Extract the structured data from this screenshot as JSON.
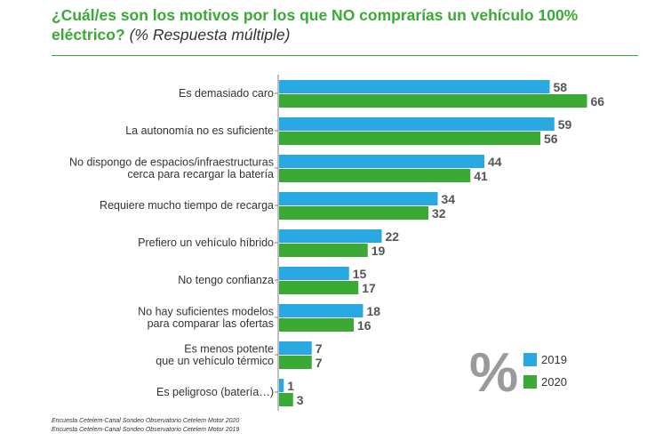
{
  "header": {
    "title_main": "¿Cuál/es son los motivos por los que NO comprarías un vehículo 100% eléctrico?",
    "title_sub": "(% Respuesta múltiple)"
  },
  "chart_data": {
    "type": "bar",
    "orientation": "horizontal",
    "title": "¿Cuál/es son los motivos por los que NO comprarías un vehículo 100% eléctrico? (% Respuesta múltiple)",
    "categories": [
      [
        "Es demasiado caro"
      ],
      [
        "La autonomía no es suficiente"
      ],
      [
        "No dispongo de espacios/infraestructuras",
        "cerca para recargar la batería"
      ],
      [
        "Requiere mucho tiempo de recarga"
      ],
      [
        "Prefiero un vehículo híbrido"
      ],
      [
        "No tengo confianza"
      ],
      [
        "No hay suficientes modelos",
        "para comparar las ofertas"
      ],
      [
        "Es menos potente",
        "que un vehículo térmico"
      ],
      [
        "Es peligroso (batería…)"
      ]
    ],
    "series": [
      {
        "name": "2019",
        "color": "#29a9e1",
        "values": [
          58,
          59,
          44,
          34,
          22,
          15,
          18,
          7,
          1
        ]
      },
      {
        "name": "2020",
        "color": "#3aaa35",
        "values": [
          66,
          56,
          41,
          32,
          19,
          17,
          16,
          7,
          3
        ]
      }
    ],
    "unit_symbol": "%",
    "xlim": [
      0,
      70
    ]
  },
  "sources": [
    "Encuesta Cetelem-Canal Sondeo Observatorio Cetelem Motor 2020",
    "Encuesta Cetelem-Canal Sondeo Observatorio Cetelem Motor 2019"
  ]
}
